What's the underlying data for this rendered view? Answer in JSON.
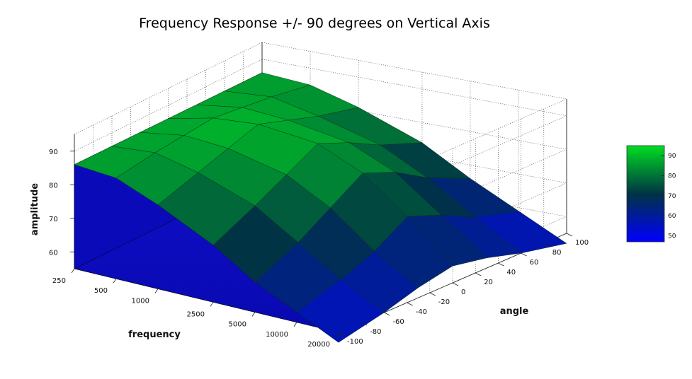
{
  "chart_data": {
    "type": "surface3d",
    "title": "Frequency Response +/- 90 degrees on Vertical Axis",
    "xlabel": "frequency",
    "ylabel": "angle",
    "zlabel": "amplitude",
    "x_ticks": [
      "250",
      "500",
      "1000",
      "2500",
      "5000",
      "10000",
      "20000"
    ],
    "x_scale": "log",
    "x_range": [
      250,
      20000
    ],
    "y_ticks": [
      -100,
      -80,
      -60,
      -40,
      -20,
      0,
      20,
      40,
      60,
      80,
      100
    ],
    "y_range": [
      -100,
      100
    ],
    "z_ticks": [
      60,
      70,
      80,
      90
    ],
    "z_range": [
      55,
      95
    ],
    "colorbar": {
      "ticks": [
        50,
        60,
        70,
        80,
        90
      ],
      "range": [
        47,
        95
      ],
      "low_color": "#0000ff",
      "mid_color": "#003344",
      "high_color": "#00dd22"
    },
    "grid": true,
    "legend": "right",
    "surface_summary": {
      "angles": [
        -90,
        -60,
        -30,
        0,
        30,
        60,
        90
      ],
      "frequencies": [
        250,
        500,
        1000,
        2500,
        5000,
        10000,
        20000
      ],
      "amplitude": [
        [
          86,
          85,
          80,
          72,
          64,
          58,
          52
        ],
        [
          86,
          87,
          84,
          78,
          70,
          62,
          55
        ],
        [
          86,
          88,
          87,
          83,
          76,
          66,
          58
        ],
        [
          86,
          89,
          90,
          88,
          82,
          72,
          60
        ],
        [
          86,
          88,
          87,
          84,
          78,
          68,
          58
        ],
        [
          86,
          87,
          84,
          79,
          72,
          63,
          55
        ],
        [
          86,
          85,
          81,
          74,
          66,
          59,
          52
        ]
      ]
    }
  }
}
